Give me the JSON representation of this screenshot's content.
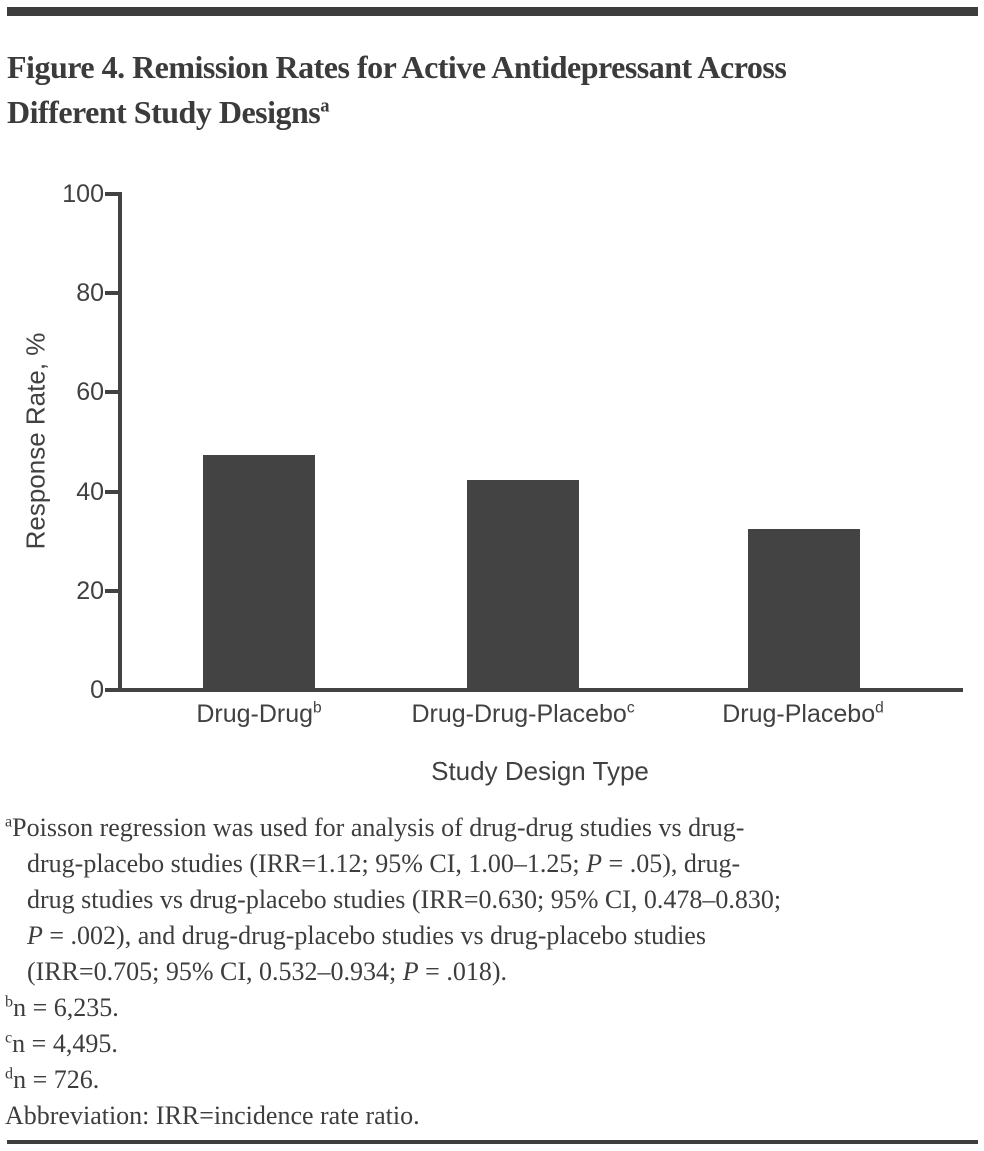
{
  "header": {
    "title_line1": "Figure 4. Remission Rates for Active Antidepressant Across",
    "title_line2": "Different Study Designs",
    "title_marker": "a"
  },
  "chart_data": {
    "type": "bar",
    "title": "Figure 4. Remission Rates for Active Antidepressant Across Different Study Designs",
    "categories": [
      "Drug-Drug",
      "Drug-Drug-Placebo",
      "Drug-Placebo"
    ],
    "category_markers": [
      "b",
      "c",
      "d"
    ],
    "values": [
      47,
      42,
      32
    ],
    "sample_sizes": [
      6235,
      4495,
      726
    ],
    "xlabel": "Study Design Type",
    "ylabel": "Response Rate, %",
    "ylim": [
      0,
      100
    ],
    "yticks": [
      0,
      20,
      40,
      60,
      80,
      100
    ],
    "grid": false,
    "legend": false,
    "bar_color": "#434343"
  },
  "footnotes": [
    {
      "marker": "a",
      "indent": false,
      "segments": [
        {
          "t": "Poisson regression was used for analysis of drug-drug studies vs drug-"
        }
      ]
    },
    {
      "indent": true,
      "segments": [
        {
          "t": "drug-placebo studies (IRR=1.12; 95% CI, 1.00–1.25; "
        },
        {
          "t": "P",
          "i": true
        },
        {
          "t": " = .05), drug-"
        }
      ]
    },
    {
      "indent": true,
      "segments": [
        {
          "t": "drug studies vs drug-placebo studies (IRR=0.630; 95% CI, 0.478–0.830;"
        }
      ]
    },
    {
      "indent": true,
      "segments": [
        {
          "t": "P",
          "i": true
        },
        {
          "t": " = .002), and drug-drug-placebo studies vs drug-placebo studies"
        }
      ]
    },
    {
      "indent": true,
      "segments": [
        {
          "t": "(IRR=0.705; 95% CI, 0.532–0.934; "
        },
        {
          "t": "P",
          "i": true
        },
        {
          "t": " = .018)."
        }
      ]
    },
    {
      "marker": "b",
      "indent": false,
      "segments": [
        {
          "t": "n = 6,235."
        }
      ]
    },
    {
      "marker": "c",
      "indent": false,
      "segments": [
        {
          "t": "n = 4,495."
        }
      ]
    },
    {
      "marker": "d",
      "indent": false,
      "segments": [
        {
          "t": "n = 726."
        }
      ]
    },
    {
      "indent": false,
      "segments": [
        {
          "t": "Abbreviation: IRR=incidence rate ratio."
        }
      ]
    }
  ],
  "colors": {
    "rule": "#3d3d3d",
    "axis": "#424242",
    "bar": "#434343",
    "text": "#3d3d3d"
  }
}
